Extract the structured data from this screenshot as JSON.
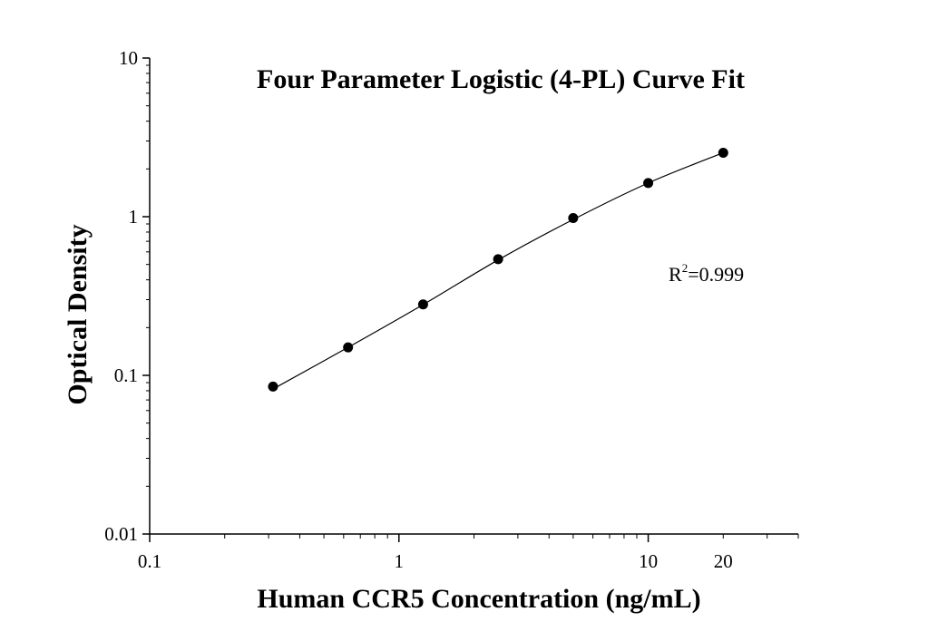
{
  "chart_data": {
    "type": "scatter",
    "title": "Four Parameter Logistic (4-PL) Curve Fit",
    "xlabel": "Human CCR5 Concentration (ng/mL)",
    "ylabel": "Optical Density",
    "x_scale": "log",
    "y_scale": "log",
    "xlim": [
      0.1,
      40
    ],
    "ylim": [
      0.01,
      10
    ],
    "x_ticks": [
      {
        "value": 0.1,
        "label": "0.1"
      },
      {
        "value": 1,
        "label": "1"
      },
      {
        "value": 10,
        "label": "10"
      },
      {
        "value": 20,
        "label": "20"
      }
    ],
    "y_ticks": [
      {
        "value": 0.01,
        "label": "0.01"
      },
      {
        "value": 0.1,
        "label": "0.1"
      },
      {
        "value": 1,
        "label": "1"
      },
      {
        "value": 10,
        "label": "10"
      }
    ],
    "grid": false,
    "series": [
      {
        "kind": "points",
        "x": [
          0.3125,
          0.625,
          1.25,
          2.5,
          5,
          10,
          20
        ],
        "y": [
          0.085,
          0.15,
          0.28,
          0.54,
          0.98,
          1.63,
          2.53
        ]
      }
    ],
    "fit": {
      "kind": "4-PL curve",
      "x": [
        0.3125,
        0.625,
        1.25,
        2.5,
        5,
        10,
        20
      ],
      "y": [
        0.082,
        0.15,
        0.279,
        0.534,
        0.96,
        1.63,
        2.53
      ]
    },
    "annotation": {
      "base": "R",
      "superscript": "2",
      "rest": "=0.999"
    },
    "colors": {
      "points": "#000000",
      "curve": "#000000",
      "axes": "#000000"
    }
  }
}
